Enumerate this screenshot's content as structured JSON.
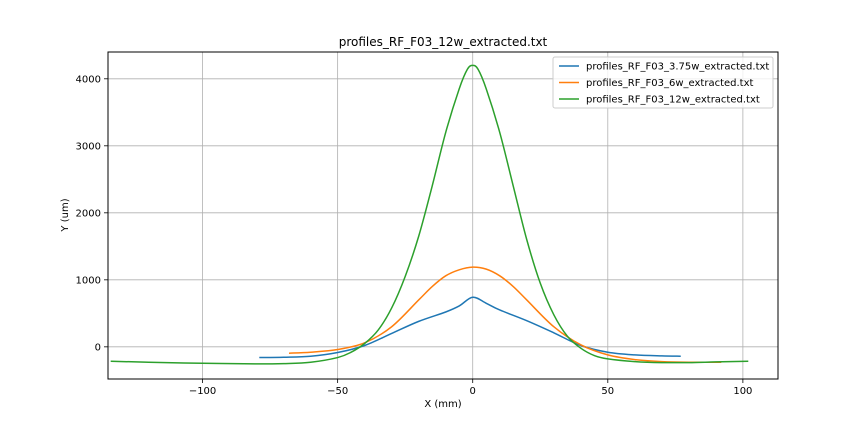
{
  "chart_data": {
    "type": "line",
    "title": "profiles_RF_F03_12w_extracted.txt",
    "xlabel": "X (mm)",
    "ylabel": "Y (um)",
    "xlim": [
      -135,
      113
    ],
    "ylim": [
      -480,
      4400
    ],
    "xticks": [
      -100,
      -50,
      0,
      50,
      100
    ],
    "yticks": [
      0,
      1000,
      2000,
      3000,
      4000
    ],
    "xtick_labels": [
      "−100",
      "−50",
      "0",
      "50",
      "100"
    ],
    "ytick_labels": [
      "0",
      "1000",
      "2000",
      "3000",
      "4000"
    ],
    "grid": true,
    "legend_position": "top-right",
    "series": [
      {
        "name": "profiles_RF_F03_3.75w_extracted.txt",
        "color": "#1f77b4",
        "x": [
          -79,
          -70,
          -60,
          -50,
          -40,
          -30,
          -20,
          -10,
          -5,
          0,
          5,
          10,
          20,
          30,
          40,
          50,
          60,
          70,
          77
        ],
        "y": [
          -160,
          -155,
          -140,
          -85,
          20,
          200,
          380,
          520,
          610,
          740,
          650,
          550,
          390,
          210,
          20,
          -80,
          -120,
          -135,
          -140
        ]
      },
      {
        "name": "profiles_RF_F03_6w_extracted.txt",
        "color": "#ff7f0e",
        "x": [
          -68,
          -60,
          -50,
          -40,
          -30,
          -20,
          -15,
          -10,
          -5,
          0,
          5,
          10,
          15,
          20,
          30,
          40,
          50,
          60,
          70,
          80,
          92
        ],
        "y": [
          -95,
          -80,
          -40,
          60,
          300,
          700,
          900,
          1060,
          1150,
          1190,
          1160,
          1060,
          900,
          700,
          300,
          30,
          -120,
          -190,
          -220,
          -230,
          -230
        ]
      },
      {
        "name": "profiles_RF_F03_12w_extracted.txt",
        "color": "#2ca02c",
        "x": [
          -134,
          -120,
          -100,
          -80,
          -70,
          -60,
          -50,
          -45,
          -40,
          -35,
          -30,
          -25,
          -20,
          -15,
          -10,
          -5,
          -2,
          0,
          2,
          5,
          10,
          15,
          20,
          25,
          30,
          35,
          40,
          45,
          50,
          60,
          70,
          80,
          90,
          102
        ],
        "y": [
          -215,
          -230,
          -245,
          -255,
          -250,
          -230,
          -160,
          -80,
          50,
          250,
          580,
          1050,
          1650,
          2400,
          3200,
          3850,
          4140,
          4200,
          4140,
          3850,
          3200,
          2400,
          1600,
          950,
          480,
          160,
          -20,
          -130,
          -180,
          -220,
          -235,
          -235,
          -225,
          -215
        ]
      }
    ]
  }
}
